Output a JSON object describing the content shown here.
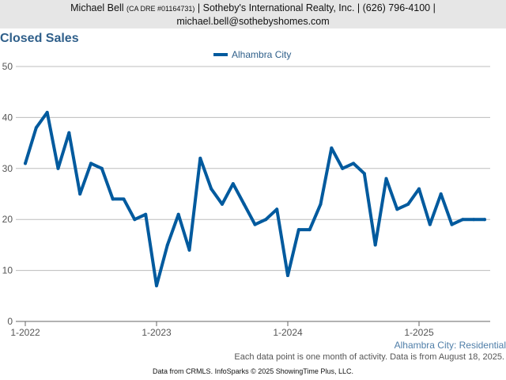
{
  "header": {
    "agent_name": "Michael Bell",
    "dre": "(CA DRE #01164731)",
    "company_phone": "| Sotheby's International Realty, Inc. | (626) 796-4100 |",
    "email": "michael.bell@sothebyshomes.com"
  },
  "footer": {
    "subtitle": "Alhambra City: Residential",
    "note": "Each data point is one month of activity. Data is from August 18, 2025.",
    "source": "Data from CRMLS. InfoSparks © 2025 ShowingTime Plus, LLC."
  },
  "chart_data": {
    "type": "line",
    "title": "Closed Sales",
    "xlabel": "",
    "ylabel": "",
    "ylim": [
      0,
      50
    ],
    "yticks": [
      0,
      10,
      20,
      30,
      40,
      50
    ],
    "xticks": [
      "1-2022",
      "1-2023",
      "1-2024",
      "1-2025"
    ],
    "x_start": "2022-01",
    "legend_position": "top-center",
    "grid": true,
    "series": [
      {
        "name": "Alhambra City",
        "color": "#005a9e",
        "values": [
          31,
          38,
          41,
          30,
          37,
          25,
          31,
          30,
          24,
          24,
          20,
          21,
          7,
          15,
          21,
          14,
          32,
          26,
          23,
          27,
          23,
          19,
          20,
          22,
          9,
          18,
          18,
          23,
          34,
          30,
          31,
          29,
          15,
          28,
          22,
          23,
          26,
          19,
          25,
          19,
          20,
          20,
          20
        ]
      }
    ]
  }
}
